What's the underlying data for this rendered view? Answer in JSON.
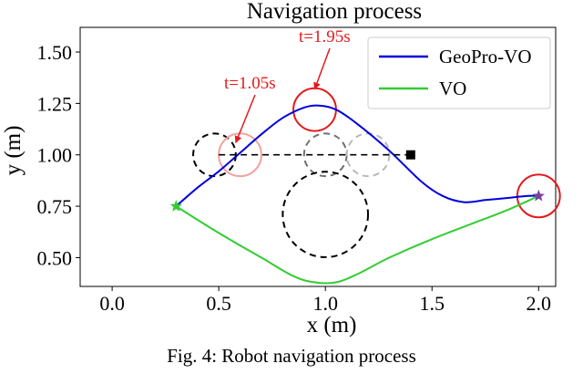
{
  "chart_data": {
    "type": "line",
    "title": "Navigation process",
    "xlabel": "x (m)",
    "ylabel": "y (m)",
    "xlim": [
      -0.15,
      2.08
    ],
    "ylim": [
      0.36,
      1.62
    ],
    "xticks": [
      0.0,
      0.5,
      1.0,
      1.5,
      2.0
    ],
    "yticks": [
      0.5,
      0.75,
      1.0,
      1.25,
      1.5
    ],
    "xtick_labels": [
      "0.0",
      "0.5",
      "1.0",
      "1.5",
      "2.0"
    ],
    "ytick_labels": [
      "0.50",
      "0.75",
      "1.00",
      "1.25",
      "1.50"
    ],
    "grid": false,
    "legend": "top-right",
    "series": [
      {
        "name": "GeoPro-VO",
        "color": "#0000dd",
        "x": [
          0.3,
          0.4,
          0.5,
          0.6,
          0.7,
          0.8,
          0.9,
          0.97,
          1.05,
          1.15,
          1.3,
          1.45,
          1.55,
          1.65,
          1.75,
          1.85,
          1.95,
          2.0
        ],
        "y": [
          0.75,
          0.84,
          0.92,
          1.01,
          1.1,
          1.18,
          1.23,
          1.24,
          1.22,
          1.15,
          1.02,
          0.87,
          0.8,
          0.77,
          0.78,
          0.79,
          0.8,
          0.8
        ]
      },
      {
        "name": "VO",
        "color": "#33cc33",
        "x": [
          0.3,
          0.5,
          0.7,
          0.85,
          0.95,
          1.05,
          1.15,
          1.3,
          1.5,
          1.7,
          1.85,
          2.0
        ],
        "y": [
          0.75,
          0.62,
          0.5,
          0.41,
          0.38,
          0.38,
          0.42,
          0.5,
          0.59,
          0.67,
          0.73,
          0.8
        ]
      },
      {
        "name": "",
        "color": "#000000",
        "x": [
          0.5,
          1.4
        ],
        "y": [
          1.0,
          1.0
        ]
      }
    ],
    "markers": [
      {
        "shape": "star",
        "x": 0.3,
        "y": 0.75,
        "color": "#33cc33"
      },
      {
        "shape": "star",
        "x": 2.0,
        "y": 0.8,
        "color": "#7b3fa0"
      },
      {
        "shape": "square",
        "x": 1.4,
        "y": 1.0,
        "color": "#000000"
      }
    ],
    "circles": [
      {
        "x": 0.48,
        "y": 1.0,
        "r": 0.1,
        "color": "#000000",
        "dashed": true
      },
      {
        "x": 0.6,
        "y": 1.0,
        "r": 0.1,
        "color": "#f4a0a0",
        "dashed": false
      },
      {
        "x": 1.0,
        "y": 1.0,
        "r": 0.1,
        "color": "#707070",
        "dashed": true
      },
      {
        "x": 1.2,
        "y": 1.0,
        "r": 0.1,
        "color": "#b8b8b8",
        "dashed": true
      },
      {
        "x": 0.95,
        "y": 1.22,
        "r": 0.1,
        "color": "#e31a1c",
        "dashed": false
      },
      {
        "x": 2.0,
        "y": 0.8,
        "r": 0.1,
        "color": "#e31a1c",
        "dashed": false
      },
      {
        "x": 1.0,
        "y": 0.71,
        "r": 0.2,
        "color": "#000000",
        "dashed": true
      }
    ],
    "annotations": [
      {
        "text": "t=1.05s",
        "target": [
          0.58,
          1.06
        ],
        "color": "#e31a1c"
      },
      {
        "text": "t=1.95s",
        "target": [
          0.95,
          1.32
        ],
        "color": "#e31a1c"
      }
    ]
  },
  "caption": "Fig. 4: Robot navigation process"
}
